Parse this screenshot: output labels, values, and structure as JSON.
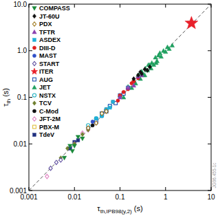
{
  "chart_data": {
    "type": "scatter",
    "x_label": "τth,IPB98(y,2) (s)",
    "y_label": "τth (s)",
    "annotation": "JG06.455-1c",
    "log": true,
    "legend": "top-left",
    "xlim": [
      0.001,
      10
    ],
    "ylim": [
      0.001,
      10
    ],
    "xticks": [
      0.001,
      0.01,
      0.1,
      1,
      10
    ],
    "yticks": [
      0.001,
      0.01,
      0.1,
      {
        "value": 1,
        "label": "1.0"
      },
      {
        "value": 10,
        "label": "10.0"
      }
    ],
    "reference_line": {
      "x": [
        0.001,
        10
      ],
      "values": [
        0.001,
        10
      ],
      "line_style": "dashed"
    },
    "series": [
      {
        "name": "COMPASS",
        "color": "#1a8a3a",
        "marker": "triangle-down",
        "x": [
          0.006,
          0.008,
          0.01,
          0.012,
          0.009,
          0.015
        ],
        "values": [
          0.005,
          0.009,
          0.009,
          0.014,
          0.007,
          0.013
        ]
      },
      {
        "name": "JT-60U",
        "color": "#111111",
        "marker": "diamond",
        "x": [
          0.2,
          0.25,
          0.3,
          0.35,
          0.4,
          0.28,
          0.45
        ],
        "values": [
          0.25,
          0.3,
          0.32,
          0.4,
          0.38,
          0.35,
          0.45
        ]
      },
      {
        "name": "PDX",
        "color": "#a07a20",
        "marker": "diamond-open",
        "x": [
          0.02,
          0.03,
          0.04,
          0.05
        ],
        "values": [
          0.022,
          0.028,
          0.045,
          0.05
        ]
      },
      {
        "name": "TFTR",
        "color": "#8a40b0",
        "marker": "triangle",
        "x": [
          0.1,
          0.15,
          0.2,
          0.25,
          0.3
        ],
        "values": [
          0.1,
          0.16,
          0.18,
          0.28,
          0.3
        ]
      },
      {
        "name": "ASDEX",
        "color": "#20b0d8",
        "marker": "square",
        "x": [
          0.03,
          0.04,
          0.05,
          0.06,
          0.07
        ],
        "values": [
          0.035,
          0.04,
          0.055,
          0.06,
          0.08
        ]
      },
      {
        "name": "DIII-D",
        "color": "#e02020",
        "marker": "circle",
        "x": [
          0.05,
          0.07,
          0.09,
          0.1,
          0.12,
          0.15,
          0.18,
          0.2,
          0.25
        ],
        "values": [
          0.055,
          0.08,
          0.085,
          0.11,
          0.13,
          0.15,
          0.2,
          0.22,
          0.26
        ]
      },
      {
        "name": "MAST",
        "color": "#3050c8",
        "marker": "circle",
        "x": [
          0.02,
          0.025,
          0.03,
          0.04,
          0.05
        ],
        "values": [
          0.022,
          0.03,
          0.028,
          0.04,
          0.05
        ]
      },
      {
        "name": "START",
        "color": "#6050a0",
        "marker": "diamond-open",
        "x": [
          0.003,
          0.004,
          0.005
        ],
        "values": [
          0.003,
          0.004,
          0.0045
        ]
      },
      {
        "name": "ITER",
        "color": "#e8202a",
        "marker": "star",
        "x": [
          3.7
        ],
        "values": [
          3.9
        ]
      },
      {
        "name": "AUG",
        "color": "#2050b0",
        "marker": "square-open",
        "x": [
          0.03,
          0.04,
          0.05,
          0.06,
          0.08,
          0.1,
          0.12,
          0.15
        ],
        "values": [
          0.03,
          0.045,
          0.05,
          0.065,
          0.075,
          0.11,
          0.12,
          0.16
        ]
      },
      {
        "name": "JET",
        "color": "#20a060",
        "marker": "triangle",
        "x": [
          0.1,
          0.12,
          0.15,
          0.18,
          0.2,
          0.22,
          0.25,
          0.28,
          0.3,
          0.33,
          0.36,
          0.4,
          0.45,
          0.5,
          0.55,
          0.6,
          0.65,
          0.7,
          0.8,
          0.9,
          1.0,
          1.1,
          1.2,
          1.4,
          0.35,
          0.42,
          0.48,
          0.26,
          0.62,
          0.75
        ],
        "values": [
          0.11,
          0.1,
          0.17,
          0.16,
          0.24,
          0.2,
          0.3,
          0.25,
          0.36,
          0.3,
          0.42,
          0.38,
          0.5,
          0.55,
          0.5,
          0.72,
          0.6,
          0.8,
          0.75,
          1.0,
          0.95,
          1.2,
          1.1,
          1.3,
          0.3,
          0.5,
          0.42,
          0.3,
          0.55,
          0.9
        ]
      },
      {
        "name": "NSTX",
        "color": "#20b0c0",
        "marker": "circle-open",
        "x": [
          0.02,
          0.03,
          0.04,
          0.05,
          0.06
        ],
        "values": [
          0.025,
          0.035,
          0.04,
          0.055,
          0.065
        ]
      },
      {
        "name": "TCV",
        "color": "#708030",
        "marker": "diamond",
        "x": [
          0.005,
          0.007,
          0.01,
          0.015,
          0.02
        ],
        "values": [
          0.005,
          0.008,
          0.01,
          0.016,
          0.02
        ]
      },
      {
        "name": "C-Mod",
        "color": "#111111",
        "marker": "circle",
        "x": [
          0.02,
          0.025,
          0.03,
          0.04,
          0.05
        ],
        "values": [
          0.022,
          0.025,
          0.035,
          0.045,
          0.05
        ]
      },
      {
        "name": "JFT-2M",
        "color": "#e080c0",
        "marker": "diamond-open",
        "x": [
          0.0025,
          0.01,
          0.015,
          0.02,
          0.03
        ],
        "values": [
          0.002,
          0.01,
          0.017,
          0.02,
          0.03
        ]
      },
      {
        "name": "PBX-M",
        "color": "#e0c040",
        "marker": "square-open",
        "x": [
          0.03,
          0.04,
          0.05
        ],
        "values": [
          0.032,
          0.045,
          0.05
        ]
      },
      {
        "name": "TdeV",
        "color": "#203080",
        "marker": "square",
        "x": [
          0.008,
          0.01,
          0.012
        ],
        "values": [
          0.008,
          0.011,
          0.012
        ]
      }
    ]
  }
}
